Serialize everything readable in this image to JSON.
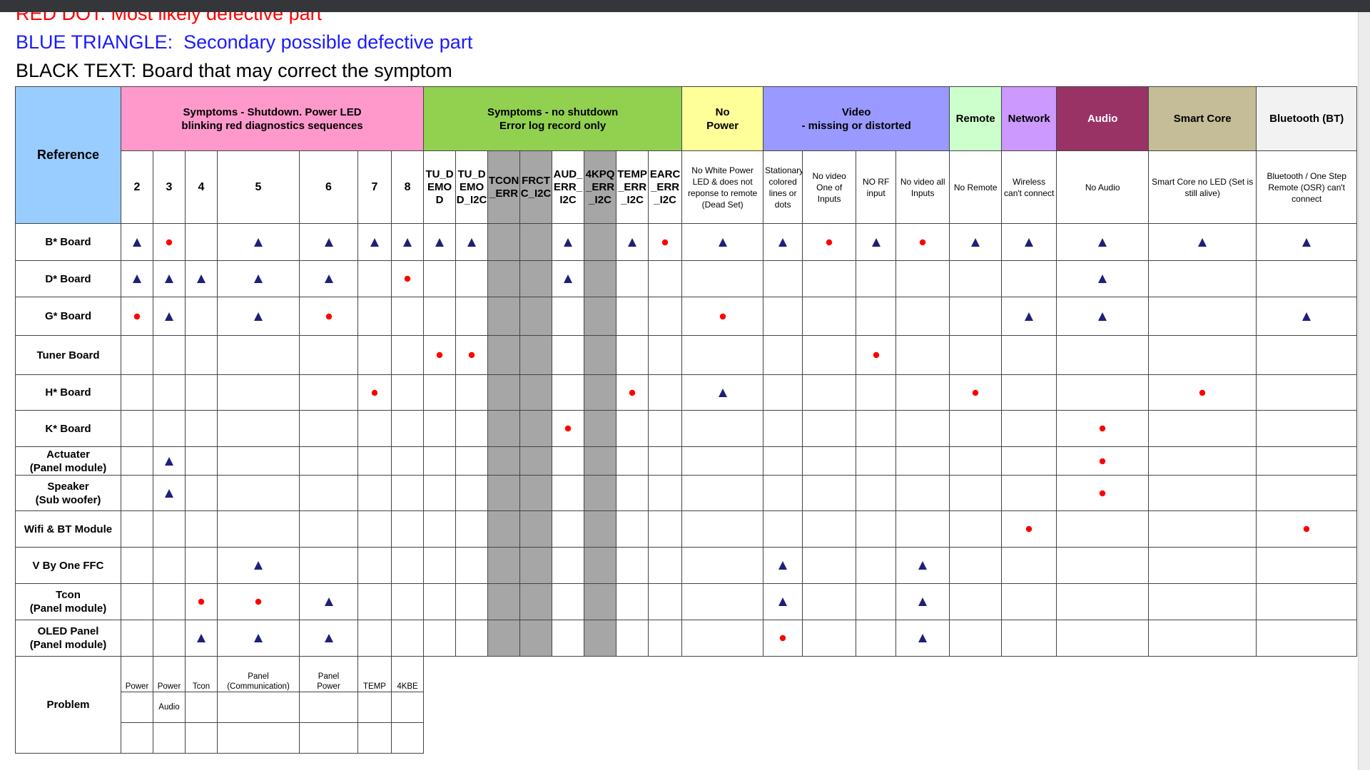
{
  "legend": [
    {
      "text": "RED DOT: Most likely defective part",
      "color": "#ff0000"
    },
    {
      "text": "BLUE TRIANGLE:  Secondary possible defective part",
      "color": "#1a1aff"
    },
    {
      "text": "BLACK TEXT: Board that may correct the symptom",
      "color": "#000000"
    }
  ],
  "table": {
    "reference_header": "Reference",
    "groups": [
      {
        "label": "Symptoms - Shutdown. Power LED\nblinking red diagnostics sequences",
        "color": "#ff99cc",
        "columns": [
          {
            "label": "2"
          },
          {
            "label": "3"
          },
          {
            "label": "4"
          },
          {
            "label": "5"
          },
          {
            "label": "6"
          },
          {
            "label": "7"
          },
          {
            "label": "8"
          }
        ]
      },
      {
        "label": "Symptoms - no shutdown\nError log record only",
        "color": "#92d050",
        "columns": [
          {
            "label": "TU_DEMOD"
          },
          {
            "label": "TU_DEMOD_I2C"
          },
          {
            "label": "TCON_ERR",
            "shaded": true
          },
          {
            "label": "FRCTC_I2C",
            "shaded": true
          },
          {
            "label": "AUD_ERR_I2C"
          },
          {
            "label": "4KPQ_ERR_I2C",
            "shaded": true
          },
          {
            "label": "TEMP_ERR_I2C"
          },
          {
            "label": "EARC_ERR_I2C"
          }
        ]
      },
      {
        "label": "No\nPower",
        "color": "#ffff99",
        "columns": [
          {
            "label": "No White Power LED & does not reponse to remote (Dead Set)"
          }
        ]
      },
      {
        "label": "Video\n- missing or distorted",
        "color": "#9999ff",
        "columns": [
          {
            "label": "Stationary colored lines or dots"
          },
          {
            "label": "No video One of Inputs"
          },
          {
            "label": "NO RF input"
          },
          {
            "label": "No video all Inputs"
          }
        ]
      },
      {
        "label": "Remote",
        "color": "#ccffcc",
        "columns": [
          {
            "label": "No Remote"
          }
        ]
      },
      {
        "label": "Network",
        "color": "#cc99ff",
        "columns": [
          {
            "label": "Wireless can't connect"
          }
        ]
      },
      {
        "label": "Audio",
        "color": "#993366",
        "columns": [
          {
            "label": "No Audio"
          }
        ]
      },
      {
        "label": "Smart Core",
        "color": "#c4bd97",
        "columns": [
          {
            "label": "Smart Core no  LED (Set is still alive)"
          }
        ]
      },
      {
        "label": "Bluetooth (BT)",
        "color": "#f2f2f2",
        "columns": [
          {
            "label": "Bluetooth / One Step Remote (OSR) can't connect"
          }
        ]
      }
    ],
    "mark_colors": {
      "dot": "#ff0000",
      "triangle": "#1f1f7a"
    },
    "rows": [
      {
        "label": "B* Board",
        "marks": [
          "triangle",
          "dot",
          null,
          "triangle",
          "triangle",
          "triangle",
          "triangle",
          "triangle",
          "triangle",
          null,
          null,
          "triangle",
          null,
          "triangle",
          "dot",
          "triangle",
          "triangle",
          "dot",
          "triangle",
          "dot",
          "triangle",
          "triangle",
          "triangle",
          "triangle",
          "triangle"
        ]
      },
      {
        "label": "D* Board",
        "marks": [
          "triangle",
          "triangle",
          "triangle",
          "triangle",
          "triangle",
          null,
          "dot",
          null,
          null,
          null,
          null,
          "triangle",
          null,
          null,
          null,
          null,
          null,
          null,
          null,
          null,
          null,
          null,
          "triangle",
          null,
          null
        ]
      },
      {
        "label": "G* Board",
        "marks": [
          "dot",
          "triangle",
          null,
          "triangle",
          "dot",
          null,
          null,
          null,
          null,
          null,
          null,
          null,
          null,
          null,
          null,
          "dot",
          null,
          null,
          null,
          null,
          null,
          "triangle",
          "triangle",
          null,
          "triangle"
        ]
      },
      {
        "label": "Tuner Board",
        "marks": [
          null,
          null,
          null,
          null,
          null,
          null,
          null,
          "dot",
          "dot",
          null,
          null,
          null,
          null,
          null,
          null,
          null,
          null,
          null,
          "dot",
          null,
          null,
          null,
          null,
          null,
          null
        ]
      },
      {
        "label": "H* Board",
        "marks": [
          null,
          null,
          null,
          null,
          null,
          "dot",
          null,
          null,
          null,
          null,
          null,
          null,
          null,
          "dot",
          null,
          "triangle",
          null,
          null,
          null,
          null,
          "dot",
          null,
          null,
          "dot",
          null
        ]
      },
      {
        "label": "K* Board",
        "marks": [
          null,
          null,
          null,
          null,
          null,
          null,
          null,
          null,
          null,
          null,
          null,
          "dot",
          null,
          null,
          null,
          null,
          null,
          null,
          null,
          null,
          null,
          null,
          "dot",
          null,
          null
        ]
      },
      {
        "label": "Actuater\n(Panel module)",
        "marks": [
          null,
          "triangle",
          null,
          null,
          null,
          null,
          null,
          null,
          null,
          null,
          null,
          null,
          null,
          null,
          null,
          null,
          null,
          null,
          null,
          null,
          null,
          null,
          "dot",
          null,
          null
        ]
      },
      {
        "label": "Speaker\n(Sub woofer)",
        "marks": [
          null,
          "triangle",
          null,
          null,
          null,
          null,
          null,
          null,
          null,
          null,
          null,
          null,
          null,
          null,
          null,
          null,
          null,
          null,
          null,
          null,
          null,
          null,
          "dot",
          null,
          null
        ]
      },
      {
        "label": "Wifi & BT Module",
        "marks": [
          null,
          null,
          null,
          null,
          null,
          null,
          null,
          null,
          null,
          null,
          null,
          null,
          null,
          null,
          null,
          null,
          null,
          null,
          null,
          null,
          null,
          "dot",
          null,
          null,
          "dot"
        ]
      },
      {
        "label": "V By One FFC",
        "marks": [
          null,
          null,
          null,
          "triangle",
          null,
          null,
          null,
          null,
          null,
          null,
          null,
          null,
          null,
          null,
          null,
          null,
          "triangle",
          null,
          null,
          "triangle",
          null,
          null,
          null,
          null,
          null
        ]
      },
      {
        "label": "Tcon\n(Panel module)",
        "marks": [
          null,
          null,
          "dot",
          "dot",
          "triangle",
          null,
          null,
          null,
          null,
          null,
          null,
          null,
          null,
          null,
          null,
          null,
          "triangle",
          null,
          null,
          "triangle",
          null,
          null,
          null,
          null,
          null
        ]
      },
      {
        "label": "OLED Panel\n(Panel module)",
        "marks": [
          null,
          null,
          "triangle",
          "triangle",
          "triangle",
          null,
          null,
          null,
          null,
          null,
          null,
          null,
          null,
          null,
          null,
          null,
          "dot",
          null,
          null,
          "triangle",
          null,
          null,
          null,
          null,
          null
        ]
      }
    ],
    "problem": {
      "label": "Problem",
      "items": [
        [
          "Power"
        ],
        [
          "Power",
          "Audio"
        ],
        [
          "Tcon"
        ],
        [
          "Panel\n(Communication)"
        ],
        [
          "Panel\nPower"
        ],
        [
          "TEMP"
        ],
        [
          "4KBE"
        ]
      ]
    }
  }
}
